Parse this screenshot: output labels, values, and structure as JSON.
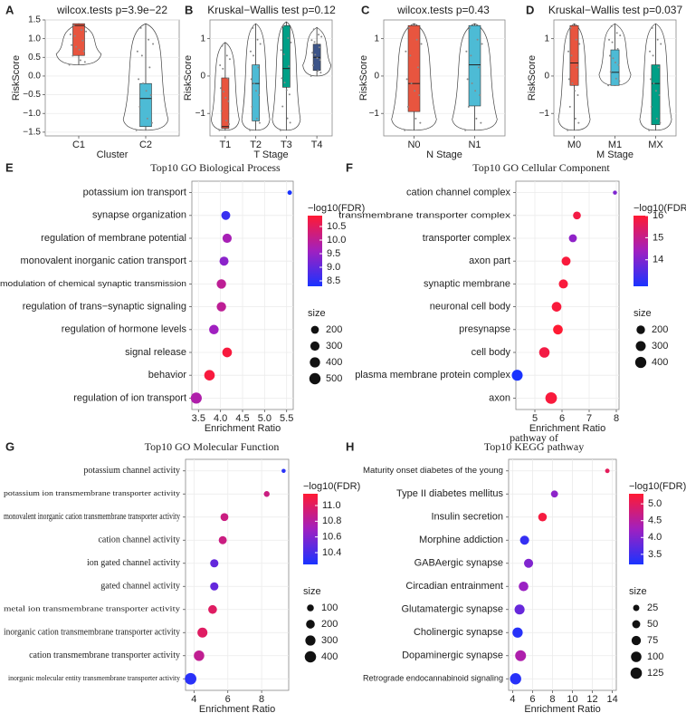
{
  "colors": {
    "c1": "#e8553f",
    "c2": "#4dbbd5",
    "c3": "#00a087",
    "c4": "#3c5488",
    "gradient_high": "#ff1a33",
    "gradient_mid": "#a020c0",
    "gradient_low": "#1a33ff",
    "grid": "#ebebeb"
  },
  "chart_data": [
    {
      "panel": "A",
      "type": "box",
      "title": "wilcox.tests p=3.9e−22",
      "xlabel": "Cluster",
      "ylabel": "RiskScore",
      "categories": [
        "C1",
        "C2"
      ],
      "yticks": [
        "1.5",
        "1.0",
        "0.5",
        "0.0",
        "−0.5",
        "−1.0",
        "−1.5"
      ],
      "ylim": [
        -1.6,
        1.5
      ],
      "series": [
        {
          "name": "C1",
          "q1": 0.55,
          "median": 1.35,
          "q3": 1.4,
          "whisker_low": 0.3,
          "whisker_high": 1.4
        },
        {
          "name": "C2",
          "q1": -1.35,
          "median": -0.6,
          "q3": -0.2,
          "whisker_low": -1.45,
          "whisker_high": 1.4
        }
      ]
    },
    {
      "panel": "B",
      "type": "box",
      "title": "Kruskal−Wallis test p=0.12",
      "xlabel": "T Stage",
      "ylabel": "RiskScore",
      "categories": [
        "T1",
        "T2",
        "T3",
        "T4"
      ],
      "yticks": [
        "1",
        "0",
        "−1"
      ],
      "ylim": [
        -1.6,
        1.5
      ],
      "series": [
        {
          "name": "T1",
          "q1": -1.4,
          "median": -1.35,
          "q3": -0.05,
          "whisker_low": -1.45,
          "whisker_high": 0.9
        },
        {
          "name": "T2",
          "q1": -1.2,
          "median": -0.2,
          "q3": 0.3,
          "whisker_low": -1.45,
          "whisker_high": 1.4
        },
        {
          "name": "T3",
          "q1": -0.3,
          "median": 0.2,
          "q3": 1.35,
          "whisker_low": -1.45,
          "whisker_high": 1.45
        },
        {
          "name": "T4",
          "q1": 0.15,
          "median": 0.5,
          "q3": 0.85,
          "whisker_low": 0.0,
          "whisker_high": 1.3
        }
      ]
    },
    {
      "panel": "C",
      "type": "box",
      "title": "wilcox.tests p=0.43",
      "xlabel": "N Stage",
      "ylabel": "RiskScore",
      "categories": [
        "N0",
        "N1"
      ],
      "yticks": [
        "1",
        "0",
        "−1"
      ],
      "ylim": [
        -1.6,
        1.5
      ],
      "series": [
        {
          "name": "N0",
          "q1": -0.95,
          "median": -0.2,
          "q3": 1.35,
          "whisker_low": -1.45,
          "whisker_high": 1.4
        },
        {
          "name": "N1",
          "q1": -0.8,
          "median": 0.3,
          "q3": 1.35,
          "whisker_low": -1.45,
          "whisker_high": 1.4
        }
      ]
    },
    {
      "panel": "D",
      "type": "box",
      "title": "Kruskal−Wallis test p=0.037",
      "xlabel": "M Stage",
      "ylabel": "RiskScore",
      "categories": [
        "M0",
        "M1",
        "MX"
      ],
      "yticks": [
        "1",
        "0",
        "−1"
      ],
      "ylim": [
        -1.6,
        1.5
      ],
      "series": [
        {
          "name": "M0",
          "q1": -0.25,
          "median": 0.35,
          "q3": 1.35,
          "whisker_low": -1.45,
          "whisker_high": 1.4
        },
        {
          "name": "M1",
          "q1": -0.25,
          "median": 0.1,
          "q3": 0.7,
          "whisker_low": -0.25,
          "whisker_high": 1.4
        },
        {
          "name": "MX",
          "q1": -1.3,
          "median": -0.2,
          "q3": 0.3,
          "whisker_low": -1.45,
          "whisker_high": 1.4
        }
      ]
    },
    {
      "panel": "E",
      "type": "scatter",
      "title": "Top10 GO Biological Process",
      "xlabel": "Enrichment Ratio",
      "xlim": [
        3.35,
        5.65
      ],
      "xticks": [
        3.5,
        4.0,
        4.5,
        5.0,
        5.5
      ],
      "xtick_labels": [
        "3.5",
        "4.0",
        "4.5",
        "5.0",
        "5.5"
      ],
      "color_title": "−log10(FDR)",
      "color_range": [
        8.3,
        10.9
      ],
      "color_ticks": [
        8.5,
        9.0,
        9.5,
        10.0,
        10.5
      ],
      "color_tick_labels": [
        "8.5",
        "9.0",
        "9.5",
        "10.0",
        "10.5"
      ],
      "size_title": "size",
      "size_range": [
        30,
        560
      ],
      "size_ticks": [
        200,
        300,
        400,
        500
      ],
      "size_tick_labels": [
        "200",
        "300",
        "400",
        "500"
      ],
      "terms": [
        {
          "label": "potassium ion transport",
          "x": 5.57,
          "fdr": 8.3,
          "size": 50
        },
        {
          "label": "synapse organization",
          "x": 4.12,
          "fdr": 8.6,
          "size": 280
        },
        {
          "label": "regulation of membrane potential",
          "x": 4.15,
          "fdr": 9.7,
          "size": 300
        },
        {
          "label": "monovalent inorganic cation transport",
          "x": 4.08,
          "fdr": 9.4,
          "size": 290
        },
        {
          "label": "modulation of chemical synaptic transmission",
          "x": 4.02,
          "fdr": 10.0,
          "size": 320
        },
        {
          "label": "regulation of trans−synaptic signaling",
          "x": 4.02,
          "fdr": 10.0,
          "size": 320
        },
        {
          "label": "regulation of hormone levels",
          "x": 3.85,
          "fdr": 9.6,
          "size": 330
        },
        {
          "label": "signal release",
          "x": 4.15,
          "fdr": 10.8,
          "size": 340
        },
        {
          "label": "behavior",
          "x": 3.75,
          "fdr": 10.8,
          "size": 420
        },
        {
          "label": "regulation of ion transport",
          "x": 3.45,
          "fdr": 9.8,
          "size": 480
        }
      ]
    },
    {
      "panel": "F",
      "type": "scatter",
      "title": "Top10 GO Cellular Component",
      "xlabel": "Enrichment Ratio",
      "xlim": [
        4.3,
        8.1
      ],
      "xticks": [
        5,
        6,
        7,
        8
      ],
      "xtick_labels": [
        "5",
        "6",
        "7",
        "8"
      ],
      "color_title": "−log10(FDR)",
      "color_range": [
        12.8,
        16.0
      ],
      "color_ticks": [
        14,
        15,
        16
      ],
      "color_tick_labels": [
        "14",
        "15",
        "16"
      ],
      "size_title": "size",
      "size_range": [
        20,
        460
      ],
      "size_ticks": [
        200,
        300,
        400
      ],
      "size_tick_labels": [
        "200",
        "300",
        "400"
      ],
      "terms": [
        {
          "label": "cation channel complex",
          "x": 7.95,
          "fdr": 14.0,
          "size": 30
        },
        {
          "label": "transmembrane transporter complex",
          "x": 6.55,
          "fdr": 15.8,
          "size": 160
        },
        {
          "label": "transporter complex",
          "x": 6.4,
          "fdr": 14.2,
          "size": 170
        },
        {
          "label": "axon part",
          "x": 6.15,
          "fdr": 15.9,
          "size": 230
        },
        {
          "label": "synaptic membrane",
          "x": 6.05,
          "fdr": 15.9,
          "size": 240
        },
        {
          "label": "neuronal cell body",
          "x": 5.8,
          "fdr": 15.9,
          "size": 280
        },
        {
          "label": "presynapse",
          "x": 5.85,
          "fdr": 16.0,
          "size": 280
        },
        {
          "label": "cell body",
          "x": 5.35,
          "fdr": 15.8,
          "size": 340
        },
        {
          "label": "plasma membrane protein complex",
          "x": 4.35,
          "fdr": 12.8,
          "size": 380
        },
        {
          "label": "axon",
          "x": 5.6,
          "fdr": 15.9,
          "size": 440
        }
      ]
    },
    {
      "panel": "G",
      "type": "scatter",
      "title": "Top10 GO Molecular Function",
      "xlabel": "Enrichment Ratio",
      "xlim": [
        3.5,
        9.6
      ],
      "xticks": [
        4,
        6,
        8
      ],
      "xtick_labels": [
        "4",
        "6",
        "8"
      ],
      "color_title": "−log10(FDR)",
      "color_range": [
        10.25,
        11.15
      ],
      "color_ticks": [
        10.4,
        10.6,
        10.8,
        11.0
      ],
      "color_tick_labels": [
        "10.4",
        "10.6",
        "10.8",
        "11.0"
      ],
      "size_title": "size",
      "size_range": [
        10,
        440
      ],
      "size_ticks": [
        100,
        200,
        300,
        400
      ],
      "size_tick_labels": [
        "100",
        "200",
        "300",
        "400"
      ],
      "terms": [
        {
          "label": "potassium channel activity",
          "x": 9.3,
          "fdr": 10.3,
          "size": 20
        },
        {
          "label": "potassium ion transmembrane transporter activity",
          "x": 8.3,
          "fdr": 10.9,
          "size": 60
        },
        {
          "label": "monovalent inorganic cation transmembrane transporter activity",
          "x": 5.8,
          "fdr": 10.9,
          "size": 150
        },
        {
          "label": "cation channel activity",
          "x": 5.7,
          "fdr": 10.9,
          "size": 160
        },
        {
          "label": "ion gated channel activity",
          "x": 5.2,
          "fdr": 10.5,
          "size": 170
        },
        {
          "label": "gated channel activity",
          "x": 5.2,
          "fdr": 10.5,
          "size": 170
        },
        {
          "label": "metal ion transmembrane transporter activity",
          "x": 5.1,
          "fdr": 11.0,
          "size": 200
        },
        {
          "label": "inorganic cation transmembrane transporter activity",
          "x": 4.5,
          "fdr": 11.0,
          "size": 290
        },
        {
          "label": "cation transmembrane transporter activity",
          "x": 4.3,
          "fdr": 10.85,
          "size": 320
        },
        {
          "label": "inorganic molecular entity transmembrane transporter activity",
          "x": 3.8,
          "fdr": 10.3,
          "size": 420
        }
      ]
    },
    {
      "panel": "H",
      "type": "scatter",
      "title": "Top10 KEGG pathway",
      "title_overlap_text": "pathway of",
      "xlabel": "Enrichment Ratio",
      "xlim": [
        3.6,
        14.4
      ],
      "xticks": [
        4,
        6,
        8,
        10,
        12,
        14
      ],
      "xtick_labels": [
        "4",
        "6",
        "8",
        "10",
        "12",
        "14"
      ],
      "color_title": "−log10(FDR)",
      "color_range": [
        3.2,
        5.3
      ],
      "color_ticks": [
        3.5,
        4.0,
        4.5,
        5.0
      ],
      "color_tick_labels": [
        "3.5",
        "4.0",
        "4.5",
        "5.0"
      ],
      "size_title": "size",
      "size_range": [
        5,
        135
      ],
      "size_ticks": [
        25,
        50,
        75,
        100,
        125
      ],
      "size_tick_labels": [
        "25",
        "50",
        "75",
        "100",
        "125"
      ],
      "terms": [
        {
          "label": "Maturity onset diabetes of the young",
          "x": 13.5,
          "fdr": 5.0,
          "size": 10
        },
        {
          "label": "Type II diabetes mellitus",
          "x": 8.2,
          "fdr": 4.1,
          "size": 35
        },
        {
          "label": "Insulin secretion",
          "x": 7.0,
          "fdr": 5.2,
          "size": 60
        },
        {
          "label": "Morphine addiction",
          "x": 5.2,
          "fdr": 3.4,
          "size": 70
        },
        {
          "label": "GABAergic synapse",
          "x": 5.6,
          "fdr": 4.0,
          "size": 70
        },
        {
          "label": "Circadian entrainment",
          "x": 5.1,
          "fdr": 4.2,
          "size": 80
        },
        {
          "label": "Glutamatergic synapse",
          "x": 4.7,
          "fdr": 3.8,
          "size": 90
        },
        {
          "label": "Cholinergic synapse",
          "x": 4.5,
          "fdr": 3.3,
          "size": 95
        },
        {
          "label": "Dopaminergic synapse",
          "x": 4.8,
          "fdr": 4.4,
          "size": 110
        },
        {
          "label": "Retrograde endocannabinoid signaling",
          "x": 4.3,
          "fdr": 3.3,
          "size": 120
        }
      ]
    }
  ]
}
